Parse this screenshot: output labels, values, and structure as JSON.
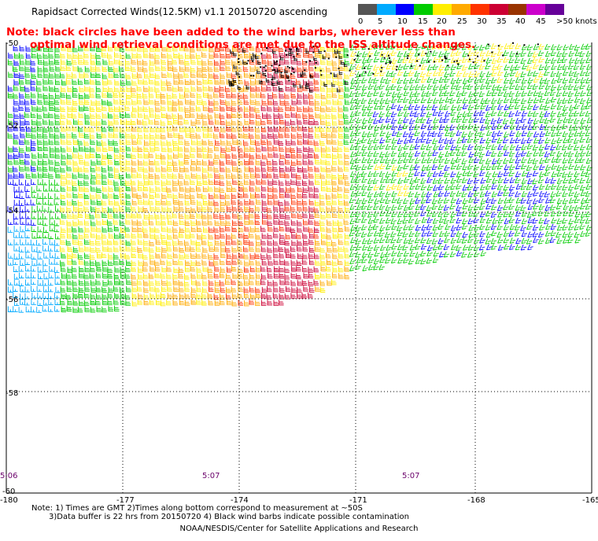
{
  "title": "Rapidsact Corrected Winds(12.5KM) v1.1 20150720 ascending",
  "notice": {
    "line1": "Note: black circles have been added to the wind barbs, wherever less than",
    "line2": "optimal wind retrieval conditions are met due to the ISS altitude changes."
  },
  "legend": {
    "colors": [
      "#555555",
      "#00aaff",
      "#0000ff",
      "#00cc00",
      "#ffee00",
      "#ffaa00",
      "#ff3300",
      "#cc0033",
      "#993300",
      "#cc00cc",
      "#660099"
    ],
    "labels": [
      "0",
      "5",
      "10",
      "15",
      "20",
      "25",
      "30",
      "35",
      "40",
      "45",
      ">50 knots"
    ]
  },
  "axes": {
    "y_labels": [
      "-50",
      "-52",
      "-54",
      "-56",
      "-58",
      "-60"
    ],
    "x_labels": [
      "-180",
      "-177",
      "-174",
      "-171",
      "-168",
      "-165"
    ]
  },
  "time_labels": [
    "5:06",
    "5:07",
    "5:07"
  ],
  "footer": {
    "note1": "Note: 1) Times are GMT 2)Times along bottom correspond to measurement at ~50S",
    "note2": "3)Data buffer is 22 hrs from 20150720 4) Black wind barbs indicate possible contamination",
    "credit": "NOAA/NESDIS/Center for Satellite Applications and Research"
  }
}
